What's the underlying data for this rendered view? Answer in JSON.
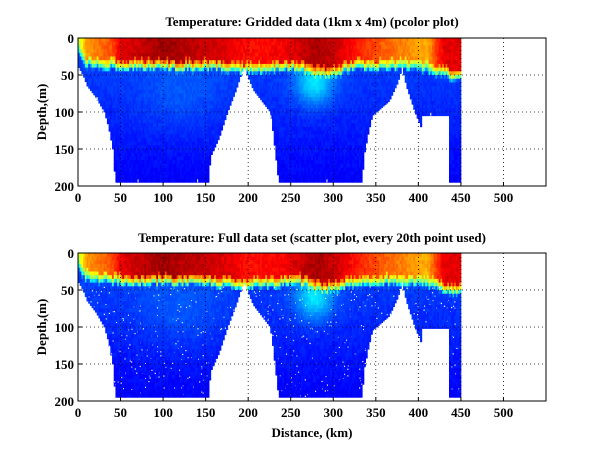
{
  "chart_data": [
    {
      "type": "heatmap",
      "title": "Temperature: Gridded data (1km x 4m) (pcolor plot)",
      "xlabel": "",
      "ylabel": "Depth,(m)",
      "xlim": [
        0,
        550
      ],
      "ylim": [
        200,
        0
      ],
      "xticks": [
        "0",
        "50",
        "100",
        "150",
        "200",
        "250",
        "300",
        "350",
        "400",
        "450",
        "500"
      ],
      "yticks": [
        "0",
        "50",
        "100",
        "150",
        "200"
      ],
      "grid": true,
      "colormap": "jet",
      "style": "pcolor"
    },
    {
      "type": "scatter",
      "title": "Temperature: Full data set (scatter plot, every 20th point used)",
      "xlabel": "Distance, (km)",
      "ylabel": "Depth,(m)",
      "xlim": [
        0,
        550
      ],
      "ylim": [
        200,
        0
      ],
      "xticks": [
        "0",
        "50",
        "100",
        "150",
        "200",
        "250",
        "300",
        "350",
        "400",
        "450",
        "500"
      ],
      "yticks": [
        "0",
        "50",
        "100",
        "150",
        "200"
      ],
      "grid": true,
      "colormap": "jet",
      "style": "scatter"
    }
  ],
  "section": {
    "bottom_depth_m": [
      [
        0,
        40
      ],
      [
        5,
        50
      ],
      [
        10,
        65
      ],
      [
        20,
        80
      ],
      [
        30,
        100
      ],
      [
        35,
        120
      ],
      [
        40,
        150
      ],
      [
        43,
        195
      ],
      [
        152,
        195
      ],
      [
        155,
        160
      ],
      [
        165,
        135
      ],
      [
        175,
        100
      ],
      [
        185,
        70
      ],
      [
        192,
        45
      ],
      [
        195,
        40
      ],
      [
        198,
        50
      ],
      [
        205,
        70
      ],
      [
        215,
        85
      ],
      [
        225,
        100
      ],
      [
        228,
        125
      ],
      [
        235,
        195
      ],
      [
        333,
        195
      ],
      [
        335,
        160
      ],
      [
        340,
        130
      ],
      [
        345,
        105
      ],
      [
        355,
        95
      ],
      [
        365,
        85
      ],
      [
        375,
        60
      ],
      [
        380,
        40
      ],
      [
        385,
        65
      ],
      [
        395,
        100
      ],
      [
        402,
        120
      ],
      [
        404,
        105
      ],
      [
        435,
        105
      ],
      [
        436,
        195
      ],
      [
        449,
        195
      ]
    ],
    "mixed_layer_depth_m": [
      [
        0,
        10
      ],
      [
        10,
        25
      ],
      [
        50,
        30
      ],
      [
        150,
        30
      ],
      [
        200,
        35
      ],
      [
        260,
        30
      ],
      [
        290,
        40
      ],
      [
        330,
        30
      ],
      [
        400,
        30
      ],
      [
        430,
        40
      ],
      [
        449,
        45
      ]
    ],
    "surface_temp_norm": [
      [
        0,
        0.55
      ],
      [
        10,
        0.72
      ],
      [
        40,
        0.8
      ],
      [
        50,
        0.9
      ],
      [
        100,
        0.97
      ],
      [
        180,
        0.9
      ],
      [
        200,
        0.86
      ],
      [
        240,
        0.88
      ],
      [
        280,
        0.96
      ],
      [
        300,
        0.93
      ],
      [
        340,
        0.82
      ],
      [
        380,
        0.75
      ],
      [
        410,
        0.7
      ],
      [
        430,
        0.9
      ],
      [
        449,
        0.9
      ]
    ]
  }
}
